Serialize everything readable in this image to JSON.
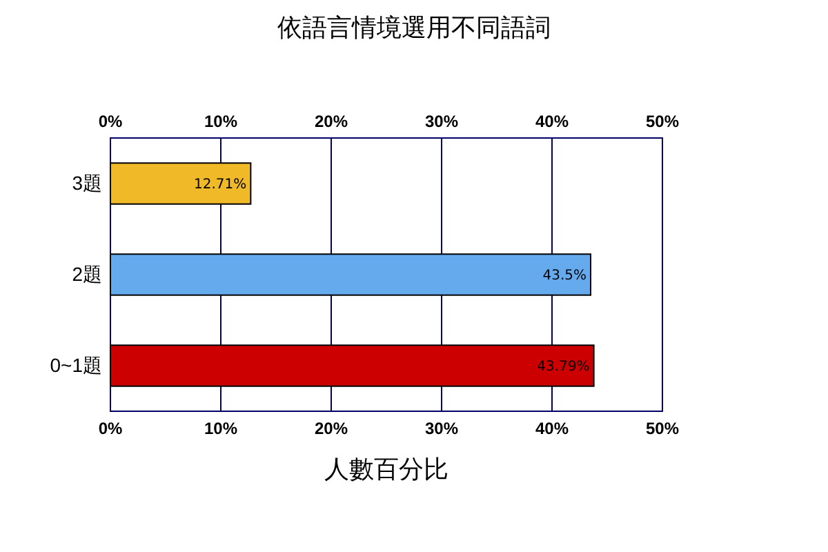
{
  "chart_data": {
    "type": "bar",
    "orientation": "horizontal",
    "title": "依語言情境選用不同語詞",
    "xlabel": "人數百分比",
    "categories": [
      "3題",
      "2題",
      "0~1題"
    ],
    "values": [
      12.71,
      43.5,
      43.79
    ],
    "colors": [
      "#f0b928",
      "#66aaee",
      "#cc0000"
    ],
    "value_labels": [
      "12.71%",
      "43.5%",
      "43.79%"
    ],
    "xlim": [
      0,
      50
    ],
    "xticks": [
      {
        "value": 0,
        "label": "0%"
      },
      {
        "value": 10,
        "label": "10%"
      },
      {
        "value": 20,
        "label": "20%"
      },
      {
        "value": 30,
        "label": "30%"
      },
      {
        "value": 40,
        "label": "40%"
      },
      {
        "value": 50,
        "label": "50%"
      }
    ],
    "x2lim": [
      0,
      50
    ],
    "x2ticks": [
      {
        "value": 0,
        "label": "0%"
      },
      {
        "value": 10,
        "label": "10%"
      },
      {
        "value": 20,
        "label": "20%"
      },
      {
        "value": 30,
        "label": "30%"
      },
      {
        "value": 40,
        "label": "40%"
      },
      {
        "value": 50,
        "label": "50%"
      }
    ],
    "grid": "x"
  }
}
